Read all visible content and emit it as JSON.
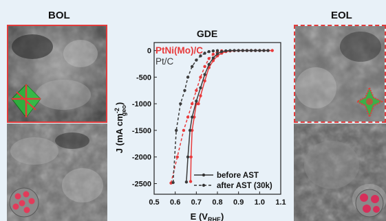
{
  "labels": {
    "bol": "BOL",
    "eol": "EOL"
  },
  "colors": {
    "ptni": "#e8393a",
    "ptc": "#3b3b3b",
    "frame_red": "#e23b3b",
    "background": "#e8f1f8"
  },
  "chart_data": {
    "type": "line",
    "title": "GDE",
    "xlabel": "E (V",
    "xlabel_sub": "RHE",
    "xlabel_close": ")",
    "ylabel": "J (mA cm",
    "ylabel_sub": "geo",
    "ylabel_sup": "-2",
    "ylabel_close": ")",
    "xlim": [
      0.5,
      1.1
    ],
    "ylim": [
      -2700,
      150
    ],
    "xticks": [
      "0.5",
      "0.6",
      "0.7",
      "0.8",
      "0.9",
      "1.0",
      "1.1"
    ],
    "yticks": [
      "0",
      "-500",
      "-1000",
      "-1500",
      "-2000",
      "-2500"
    ],
    "grid": false,
    "material_labels": [
      {
        "text": "PtNi(Mo)/C",
        "color": "#e8393a"
      },
      {
        "text": "Pt/C",
        "color": "#3b3b3b"
      }
    ],
    "legend": {
      "placement": "bottom-right",
      "entries": [
        {
          "label": "before AST",
          "style": "solid"
        },
        {
          "label": "after AST (30k)",
          "style": "dashed"
        }
      ]
    },
    "series": [
      {
        "material": "PtNi(Mo)/C",
        "condition": "before AST",
        "color": "#e8393a",
        "style": "solid",
        "x": [
          0.673,
          0.675,
          0.68,
          0.69,
          0.7,
          0.71,
          0.72,
          0.74,
          0.76,
          0.78,
          0.8,
          0.82,
          0.84,
          0.86,
          0.88,
          0.9,
          0.92,
          0.94,
          0.96,
          0.98,
          1.0,
          1.02,
          1.04,
          1.06
        ],
        "y": [
          -2460,
          -2000,
          -1500,
          -1250,
          -1000,
          -1000,
          -850,
          -570,
          -320,
          -190,
          -100,
          -50,
          -20,
          -8,
          -3,
          -1,
          0,
          0,
          0,
          0,
          0,
          0,
          0,
          0
        ]
      },
      {
        "material": "PtNi(Mo)/C",
        "condition": "after AST (30k)",
        "color": "#e8393a",
        "style": "dashed",
        "x": [
          0.58,
          0.61,
          0.64,
          0.66,
          0.68,
          0.7,
          0.72,
          0.74,
          0.76,
          0.78,
          0.8,
          0.82
        ],
        "y": [
          -2490,
          -2000,
          -1500,
          -1250,
          -1000,
          -750,
          -500,
          -300,
          -150,
          -70,
          -25,
          -5
        ]
      },
      {
        "material": "Pt/C",
        "condition": "before AST",
        "color": "#3b3b3b",
        "style": "solid",
        "x": [
          0.653,
          0.66,
          0.67,
          0.68,
          0.7,
          0.72,
          0.74,
          0.76,
          0.78,
          0.8,
          0.82,
          0.84,
          0.86,
          0.88,
          0.9,
          0.92,
          0.94,
          0.96,
          0.98,
          1.0,
          1.02,
          1.04
        ],
        "y": [
          -2470,
          -2000,
          -1500,
          -1250,
          -950,
          -700,
          -450,
          -260,
          -140,
          -60,
          -20,
          -5,
          -1,
          0,
          0,
          0,
          0,
          0,
          0,
          0,
          0,
          0
        ]
      },
      {
        "material": "Pt/C",
        "condition": "after AST (30k)",
        "color": "#3b3b3b",
        "style": "dashed",
        "x": [
          0.59,
          0.605,
          0.625,
          0.645,
          0.66,
          0.68,
          0.7,
          0.72,
          0.74,
          0.76,
          0.78,
          0.8
        ],
        "y": [
          -2480,
          -1500,
          -1000,
          -750,
          -500,
          -300,
          -180,
          -100,
          -50,
          -20,
          -8,
          -2
        ]
      }
    ]
  }
}
